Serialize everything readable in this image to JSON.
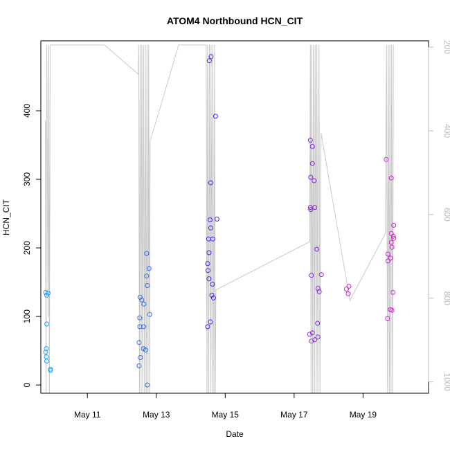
{
  "chart_data": {
    "type": "scatter",
    "title": "ATOM4 Northbound HCN_CIT",
    "xlabel": "Date",
    "ylabel": "HCN_CIT",
    "x_unit": "days in May",
    "xlim": [
      9.65,
      20.9
    ],
    "ylim": [
      -12,
      502
    ],
    "y2lim": [
      1027,
      185
    ],
    "grid": false,
    "x_ticks": [
      {
        "value": 11,
        "label": "May 11"
      },
      {
        "value": 13,
        "label": "May 13"
      },
      {
        "value": 15,
        "label": "May 15"
      },
      {
        "value": 17,
        "label": "May 17"
      },
      {
        "value": 19,
        "label": "May 19"
      }
    ],
    "y_ticks": [
      0,
      100,
      200,
      300,
      400
    ],
    "y2_ticks": [
      200,
      400,
      600,
      800,
      1000
    ],
    "series": [
      {
        "color": "#1fa0ee",
        "points": [
          [
            9.79,
            135
          ],
          [
            9.82,
            131
          ],
          [
            9.86,
            134
          ],
          [
            9.82,
            89
          ],
          [
            9.79,
            48
          ],
          [
            9.81,
            53
          ],
          [
            9.81,
            41
          ],
          [
            9.82,
            35
          ],
          [
            9.93,
            23
          ],
          [
            9.93,
            21
          ]
        ]
      },
      {
        "color": "#2f6aee",
        "points": [
          [
            12.53,
            128
          ],
          [
            12.58,
            124
          ],
          [
            12.64,
            118
          ],
          [
            12.72,
            192
          ],
          [
            12.72,
            159
          ],
          [
            12.79,
            170
          ],
          [
            12.74,
            145
          ],
          [
            12.81,
            103
          ],
          [
            12.52,
            98
          ],
          [
            12.52,
            85
          ],
          [
            12.63,
            85
          ],
          [
            12.5,
            62
          ],
          [
            12.63,
            53
          ],
          [
            12.69,
            51
          ],
          [
            12.54,
            40
          ],
          [
            12.5,
            28
          ],
          [
            12.74,
            0
          ]
        ]
      },
      {
        "color": "#3a2aee",
        "points": [
          [
            14.54,
            473
          ],
          [
            14.59,
            479
          ],
          [
            14.72,
            392
          ],
          [
            14.58,
            295
          ],
          [
            14.56,
            241
          ],
          [
            14.76,
            242
          ],
          [
            14.58,
            229
          ],
          [
            14.52,
            213
          ],
          [
            14.64,
            213
          ],
          [
            14.53,
            193
          ],
          [
            14.49,
            177
          ],
          [
            14.5,
            167
          ],
          [
            14.53,
            155
          ],
          [
            14.63,
            147
          ],
          [
            14.61,
            131
          ],
          [
            14.66,
            127
          ],
          [
            14.57,
            92
          ],
          [
            14.49,
            85
          ]
        ]
      },
      {
        "color": "#8a22e8",
        "points": [
          [
            17.47,
            357
          ],
          [
            17.53,
            348
          ],
          [
            17.53,
            323
          ],
          [
            17.48,
            303
          ],
          [
            17.58,
            298
          ],
          [
            17.47,
            259
          ],
          [
            17.48,
            256
          ],
          [
            17.6,
            259
          ],
          [
            17.66,
            198
          ],
          [
            17.5,
            160
          ],
          [
            17.79,
            161
          ],
          [
            17.69,
            141
          ],
          [
            17.73,
            136
          ],
          [
            17.68,
            90
          ],
          [
            17.45,
            74
          ],
          [
            17.53,
            76
          ],
          [
            17.69,
            70
          ],
          [
            17.6,
            66
          ],
          [
            17.5,
            64
          ]
        ]
      },
      {
        "color": "#d21ed6",
        "points": [
          [
            18.52,
            140
          ],
          [
            18.59,
            144
          ],
          [
            18.57,
            133
          ],
          [
            19.67,
            329
          ],
          [
            19.82,
            302
          ],
          [
            19.89,
            233
          ],
          [
            19.82,
            221
          ],
          [
            19.88,
            217
          ],
          [
            19.89,
            214
          ],
          [
            19.82,
            208
          ],
          [
            19.84,
            201
          ],
          [
            19.72,
            191
          ],
          [
            19.72,
            181
          ],
          [
            19.8,
            185
          ],
          [
            19.87,
            135
          ],
          [
            19.79,
            110
          ],
          [
            19.84,
            109
          ],
          [
            19.71,
            97
          ]
        ]
      }
    ],
    "secondary_series": {
      "color": "#c8c8c8",
      "points": [
        [
          9.78,
          375
        ],
        [
          9.8,
          1040
        ],
        [
          9.82,
          195
        ],
        [
          9.86,
          845
        ],
        [
          9.88,
          195
        ],
        [
          9.9,
          1040
        ],
        [
          9.92,
          195
        ],
        [
          11.5,
          195
        ],
        [
          12.48,
          265
        ],
        [
          12.49,
          195
        ],
        [
          12.51,
          1040
        ],
        [
          12.53,
          195
        ],
        [
          12.56,
          1040
        ],
        [
          12.58,
          195
        ],
        [
          12.61,
          1040
        ],
        [
          12.63,
          195
        ],
        [
          12.66,
          1040
        ],
        [
          12.68,
          195
        ],
        [
          12.71,
          1040
        ],
        [
          12.73,
          195
        ],
        [
          12.76,
          1040
        ],
        [
          12.78,
          195
        ],
        [
          12.8,
          1040
        ],
        [
          12.82,
          425
        ],
        [
          13.65,
          195
        ],
        [
          14.45,
          195
        ],
        [
          14.47,
          1040
        ],
        [
          14.49,
          195
        ],
        [
          14.52,
          1040
        ],
        [
          14.54,
          195
        ],
        [
          14.57,
          1040
        ],
        [
          14.59,
          195
        ],
        [
          14.62,
          1040
        ],
        [
          14.64,
          195
        ],
        [
          14.67,
          1040
        ],
        [
          14.69,
          195
        ],
        [
          14.71,
          1040
        ],
        [
          14.73,
          780
        ],
        [
          17.45,
          665
        ],
        [
          17.47,
          195
        ],
        [
          17.49,
          1040
        ],
        [
          17.51,
          195
        ],
        [
          17.54,
          1040
        ],
        [
          17.56,
          195
        ],
        [
          17.59,
          1040
        ],
        [
          17.61,
          195
        ],
        [
          17.64,
          1040
        ],
        [
          17.66,
          195
        ],
        [
          17.69,
          1040
        ],
        [
          17.72,
          195
        ],
        [
          17.75,
          1040
        ],
        [
          17.78,
          405
        ],
        [
          18.62,
          805
        ],
        [
          19.65,
          645
        ],
        [
          19.68,
          195
        ],
        [
          19.71,
          1040
        ],
        [
          19.73,
          195
        ],
        [
          19.76,
          1040
        ],
        [
          19.78,
          195
        ],
        [
          19.81,
          1040
        ],
        [
          19.83,
          195
        ],
        [
          19.86,
          1040
        ],
        [
          19.88,
          195
        ]
      ]
    }
  }
}
